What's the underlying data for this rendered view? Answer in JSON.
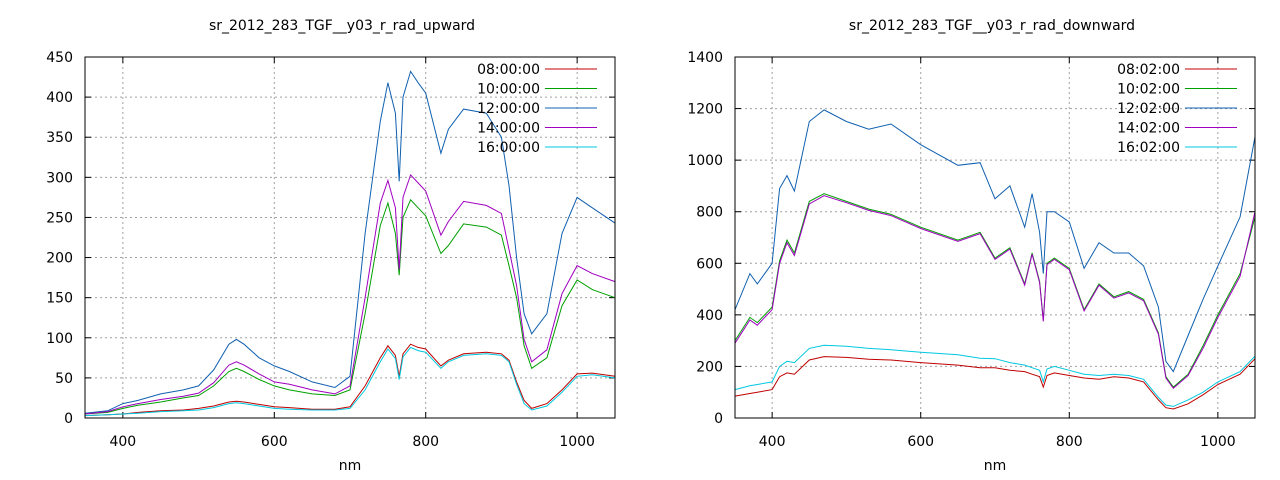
{
  "chart_data": [
    {
      "type": "line",
      "title": "sr_2012_283_TGF__y03_r_rad_upward",
      "xlabel": "nm",
      "ylabel": "",
      "xlim": [
        350,
        1050
      ],
      "ylim": [
        0,
        450
      ],
      "xticks": [
        400,
        600,
        800,
        1000
      ],
      "yticks": [
        0,
        50,
        100,
        150,
        200,
        250,
        300,
        350,
        400,
        450
      ],
      "legend_position": "top-right",
      "grid": true,
      "series": [
        {
          "name": "08:00:00",
          "color": "#c00000",
          "x": [
            350,
            380,
            400,
            420,
            450,
            480,
            500,
            520,
            540,
            550,
            560,
            580,
            600,
            620,
            650,
            680,
            700,
            720,
            740,
            750,
            760,
            765,
            770,
            780,
            790,
            800,
            820,
            830,
            850,
            880,
            900,
            910,
            920,
            930,
            940,
            960,
            980,
            1000,
            1020,
            1050
          ],
          "y": [
            3,
            4,
            5,
            7,
            9,
            10,
            12,
            15,
            20,
            21,
            20,
            17,
            14,
            13,
            11,
            11,
            14,
            40,
            75,
            90,
            78,
            52,
            80,
            92,
            88,
            86,
            65,
            72,
            80,
            82,
            80,
            72,
            45,
            22,
            12,
            18,
            35,
            55,
            56,
            52
          ]
        },
        {
          "name": "10:00:00",
          "color": "#00a000",
          "x": [
            350,
            380,
            400,
            420,
            450,
            480,
            500,
            520,
            540,
            550,
            560,
            580,
            600,
            620,
            650,
            680,
            700,
            720,
            740,
            750,
            760,
            765,
            770,
            780,
            790,
            800,
            820,
            830,
            850,
            880,
            900,
            910,
            920,
            930,
            940,
            960,
            980,
            1000,
            1020,
            1050
          ],
          "y": [
            5,
            7,
            12,
            16,
            20,
            25,
            28,
            40,
            58,
            62,
            58,
            48,
            40,
            35,
            30,
            28,
            35,
            130,
            240,
            268,
            230,
            178,
            250,
            272,
            262,
            252,
            205,
            215,
            242,
            238,
            228,
            190,
            150,
            90,
            62,
            75,
            140,
            172,
            160,
            150
          ]
        },
        {
          "name": "12:00:00",
          "color": "#1060b0",
          "x": [
            350,
            380,
            400,
            420,
            450,
            480,
            500,
            520,
            540,
            550,
            560,
            580,
            600,
            620,
            650,
            680,
            700,
            720,
            740,
            750,
            760,
            765,
            770,
            780,
            790,
            800,
            820,
            830,
            850,
            880,
            900,
            910,
            920,
            930,
            940,
            960,
            980,
            1000,
            1020,
            1050
          ],
          "y": [
            6,
            9,
            18,
            22,
            30,
            35,
            40,
            60,
            92,
            98,
            92,
            75,
            65,
            58,
            45,
            38,
            52,
            230,
            370,
            418,
            380,
            295,
            400,
            432,
            418,
            405,
            330,
            360,
            385,
            380,
            350,
            290,
            200,
            130,
            105,
            130,
            230,
            275,
            262,
            243
          ]
        },
        {
          "name": "14:00:00",
          "color": "#a000c0",
          "x": [
            350,
            380,
            400,
            420,
            450,
            480,
            500,
            520,
            540,
            550,
            560,
            580,
            600,
            620,
            650,
            680,
            700,
            720,
            740,
            750,
            760,
            765,
            770,
            780,
            790,
            800,
            820,
            830,
            850,
            880,
            900,
            910,
            920,
            930,
            940,
            960,
            980,
            1000,
            1020,
            1050
          ],
          "y": [
            5,
            8,
            14,
            18,
            23,
            27,
            31,
            44,
            66,
            70,
            66,
            55,
            45,
            42,
            35,
            30,
            40,
            150,
            268,
            296,
            262,
            185,
            275,
            303,
            293,
            283,
            228,
            245,
            270,
            265,
            255,
            210,
            165,
            98,
            70,
            85,
            155,
            190,
            180,
            170
          ]
        },
        {
          "name": "16:00:00",
          "color": "#00c8e0",
          "x": [
            350,
            380,
            400,
            420,
            450,
            480,
            500,
            520,
            540,
            550,
            560,
            580,
            600,
            620,
            650,
            680,
            700,
            720,
            740,
            750,
            760,
            765,
            770,
            780,
            790,
            800,
            820,
            830,
            850,
            880,
            900,
            910,
            920,
            930,
            940,
            960,
            980,
            1000,
            1020,
            1050
          ],
          "y": [
            3,
            4,
            5,
            6,
            8,
            9,
            10,
            13,
            18,
            19,
            18,
            15,
            12,
            11,
            10,
            10,
            12,
            35,
            70,
            86,
            74,
            48,
            76,
            88,
            84,
            82,
            62,
            70,
            78,
            80,
            78,
            70,
            42,
            18,
            10,
            15,
            32,
            52,
            54,
            50
          ]
        }
      ]
    },
    {
      "type": "line",
      "title": "sr_2012_283_TGF__y03_r_rad_downward",
      "xlabel": "nm",
      "ylabel": "",
      "xlim": [
        350,
        1050
      ],
      "ylim": [
        0,
        1400
      ],
      "xticks": [
        400,
        600,
        800,
        1000
      ],
      "yticks": [
        0,
        200,
        400,
        600,
        800,
        1000,
        1200,
        1400
      ],
      "legend_position": "top-right",
      "grid": true,
      "series": [
        {
          "name": "08:02:00",
          "color": "#c00000",
          "x": [
            350,
            370,
            380,
            400,
            410,
            420,
            430,
            450,
            470,
            500,
            530,
            560,
            600,
            650,
            680,
            700,
            720,
            740,
            750,
            760,
            765,
            770,
            780,
            800,
            820,
            840,
            860,
            880,
            900,
            920,
            930,
            940,
            960,
            980,
            1000,
            1030,
            1050
          ],
          "y": [
            85,
            95,
            100,
            110,
            160,
            175,
            170,
            225,
            238,
            235,
            228,
            225,
            215,
            205,
            195,
            195,
            185,
            180,
            170,
            160,
            120,
            165,
            175,
            165,
            155,
            150,
            160,
            155,
            140,
            70,
            40,
            35,
            55,
            90,
            130,
            170,
            230
          ]
        },
        {
          "name": "10:02:00",
          "color": "#00a000",
          "x": [
            350,
            370,
            380,
            400,
            410,
            420,
            430,
            450,
            470,
            500,
            530,
            560,
            600,
            650,
            680,
            700,
            720,
            740,
            750,
            760,
            765,
            770,
            780,
            800,
            820,
            840,
            860,
            880,
            900,
            920,
            930,
            940,
            960,
            980,
            1000,
            1030,
            1050
          ],
          "y": [
            300,
            390,
            370,
            430,
            610,
            690,
            640,
            840,
            870,
            840,
            810,
            790,
            740,
            690,
            720,
            620,
            660,
            520,
            640,
            530,
            380,
            600,
            620,
            580,
            420,
            520,
            470,
            490,
            460,
            330,
            160,
            120,
            170,
            280,
            400,
            560,
            780
          ]
        },
        {
          "name": "12:02:00",
          "color": "#1060b0",
          "x": [
            350,
            370,
            380,
            400,
            410,
            420,
            430,
            450,
            470,
            500,
            530,
            560,
            600,
            650,
            680,
            700,
            720,
            740,
            750,
            760,
            765,
            770,
            780,
            800,
            820,
            840,
            860,
            880,
            900,
            920,
            930,
            940,
            960,
            980,
            1000,
            1030,
            1050
          ],
          "y": [
            420,
            560,
            520,
            600,
            890,
            940,
            880,
            1150,
            1195,
            1150,
            1120,
            1140,
            1060,
            980,
            990,
            850,
            900,
            740,
            870,
            720,
            560,
            800,
            800,
            760,
            580,
            680,
            640,
            640,
            590,
            430,
            220,
            180,
            320,
            460,
            590,
            780,
            1090
          ]
        },
        {
          "name": "14:02:00",
          "color": "#a000c0",
          "x": [
            350,
            370,
            380,
            400,
            410,
            420,
            430,
            450,
            470,
            500,
            530,
            560,
            600,
            650,
            680,
            700,
            720,
            740,
            750,
            760,
            765,
            770,
            780,
            800,
            820,
            840,
            860,
            880,
            900,
            920,
            930,
            940,
            960,
            980,
            1000,
            1030,
            1050
          ],
          "y": [
            290,
            380,
            360,
            420,
            600,
            680,
            630,
            830,
            862,
            835,
            805,
            785,
            735,
            685,
            715,
            615,
            655,
            515,
            635,
            525,
            375,
            595,
            615,
            575,
            415,
            515,
            465,
            485,
            455,
            325,
            155,
            115,
            165,
            270,
            390,
            550,
            800
          ]
        },
        {
          "name": "16:02:00",
          "color": "#00c8e0",
          "x": [
            350,
            370,
            380,
            400,
            410,
            420,
            430,
            450,
            470,
            500,
            530,
            560,
            600,
            650,
            680,
            700,
            720,
            740,
            750,
            760,
            765,
            770,
            780,
            800,
            820,
            840,
            860,
            880,
            900,
            920,
            930,
            940,
            960,
            980,
            1000,
            1030,
            1050
          ],
          "y": [
            110,
            125,
            130,
            140,
            200,
            220,
            215,
            270,
            282,
            278,
            270,
            265,
            255,
            245,
            232,
            230,
            215,
            205,
            195,
            185,
            140,
            190,
            200,
            185,
            170,
            165,
            170,
            165,
            150,
            80,
            50,
            45,
            70,
            100,
            140,
            180,
            240
          ]
        }
      ]
    }
  ]
}
